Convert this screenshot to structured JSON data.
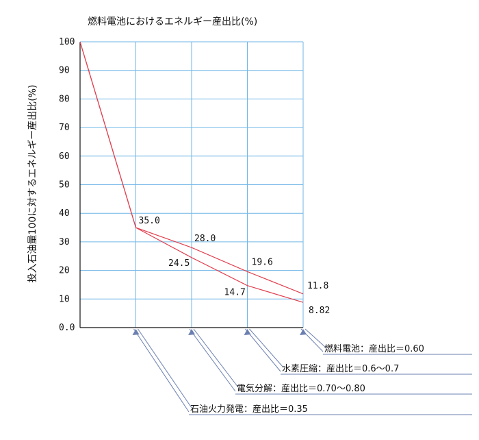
{
  "chart_data": {
    "type": "line",
    "title": "燃料電池におけるエネルギー産出比(%)",
    "ylabel": "投入石油量100に対するエネルギー産出比(%)",
    "xlabel": "",
    "ylim": [
      0,
      100
    ],
    "y_ticks": [
      "0.0",
      "10",
      "20",
      "30",
      "40",
      "50",
      "60",
      "70",
      "80",
      "90",
      "100"
    ],
    "x": [
      0,
      1,
      2,
      3,
      4
    ],
    "grid": true,
    "series": [
      {
        "values": [
          100,
          35.0,
          28.0,
          19.6,
          11.8
        ],
        "labels": [
          "",
          "35.0",
          "28.0",
          "19.6",
          "11.8"
        ]
      },
      {
        "values": [
          100,
          35.0,
          24.5,
          14.7,
          8.82
        ],
        "labels": [
          "",
          "",
          "24.5",
          "14.7",
          "8.82"
        ]
      }
    ],
    "annotations": [
      {
        "x": 1,
        "text": "石油火力発電：産出比＝0.35"
      },
      {
        "x": 2,
        "text": "電気分解：産出比＝0.70〜0.80"
      },
      {
        "x": 3,
        "text": "水素圧縮：産出比＝0.6〜0.7"
      },
      {
        "x": 4,
        "text": "燃料電池：産出比＝0.60"
      }
    ],
    "colors": {
      "line": "#e0404f",
      "grid": "#6fb6e6",
      "axis": "#111111",
      "callout": "#6b7fb0"
    }
  }
}
